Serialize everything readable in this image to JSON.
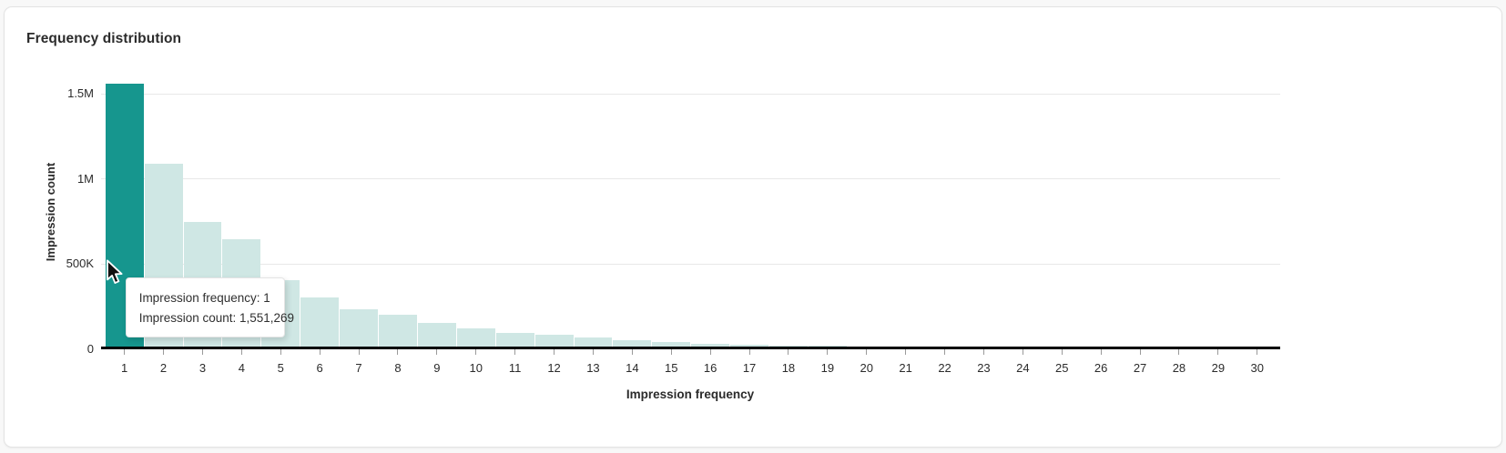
{
  "card": {
    "title": "Frequency distribution"
  },
  "colors": {
    "bar_highlight": "#16968e",
    "bar_normal": "#cfe7e4",
    "gridline": "#e8e8e8",
    "axis": "#000000",
    "text": "#2b2b2b",
    "card_background": "#ffffff",
    "page_background": "#f8f8f8"
  },
  "tooltip": {
    "lines": [
      "Impression frequency: 1",
      "Impression count: 1,551,269"
    ]
  },
  "chart_data": {
    "type": "bar",
    "title": "Frequency distribution",
    "xlabel": "Impression frequency",
    "ylabel": "Impression count",
    "categories": [
      1,
      2,
      3,
      4,
      5,
      6,
      7,
      8,
      9,
      10,
      11,
      12,
      13,
      14,
      15,
      16,
      17,
      18,
      19,
      20,
      21,
      22,
      23,
      24,
      25,
      26,
      27,
      28,
      29,
      30
    ],
    "values": [
      1551269,
      1077000,
      736000,
      632000,
      394000,
      291000,
      224000,
      189000,
      143000,
      111000,
      84000,
      74000,
      55000,
      40000,
      29000,
      21000,
      13000,
      8000,
      5000,
      2600,
      1800,
      1200,
      900,
      700,
      500,
      400,
      300,
      250,
      200,
      150
    ],
    "ylim": [
      0,
      1600000
    ],
    "yticks": [
      {
        "value": 0,
        "label": "0"
      },
      {
        "value": 500000,
        "label": "500K"
      },
      {
        "value": 1000000,
        "label": "1M"
      },
      {
        "value": 1500000,
        "label": "1.5M"
      }
    ],
    "grid": "horizontal",
    "legend": "none",
    "highlighted_index": 0,
    "highlighted_value": 1551269
  }
}
